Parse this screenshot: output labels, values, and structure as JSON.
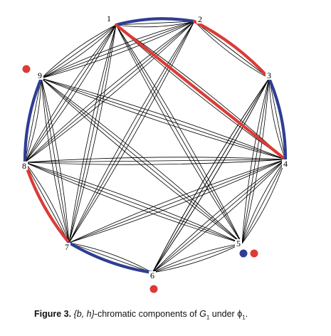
{
  "colors": {
    "red": "#dd3a36",
    "blue": "#2f3d94",
    "black": "#000000"
  },
  "nodes": [
    {
      "id": 1,
      "label": "1"
    },
    {
      "id": 2,
      "label": "2"
    },
    {
      "id": 3,
      "label": "3"
    },
    {
      "id": 4,
      "label": "4"
    },
    {
      "id": 5,
      "label": "5"
    },
    {
      "id": 6,
      "label": "6"
    },
    {
      "id": 7,
      "label": "7"
    },
    {
      "id": 8,
      "label": "8"
    },
    {
      "id": 9,
      "label": "9"
    }
  ],
  "colored_edges": [
    {
      "from": 1,
      "to": 2,
      "color": "blue"
    },
    {
      "from": 1,
      "to": 4,
      "color": "red"
    },
    {
      "from": 2,
      "to": 3,
      "color": "red"
    },
    {
      "from": 3,
      "to": 4,
      "color": "blue"
    },
    {
      "from": 9,
      "to": 8,
      "color": "blue"
    },
    {
      "from": 8,
      "to": 7,
      "color": "red"
    },
    {
      "from": 7,
      "to": 6,
      "color": "blue"
    }
  ],
  "isolated_markers": [
    {
      "node": 9,
      "color": "red"
    },
    {
      "node": 5,
      "color": "blue"
    },
    {
      "node": 5,
      "color": "red"
    },
    {
      "node": 6,
      "color": "red"
    }
  ],
  "caption": {
    "label": "Figure 3.",
    "set": "{b, h}",
    "text": "-chromatic components of ",
    "graph": "G",
    "graph_sub": "1",
    "under": " under ",
    "phi": "ϕ",
    "phi_sub": "1",
    "end": "."
  }
}
